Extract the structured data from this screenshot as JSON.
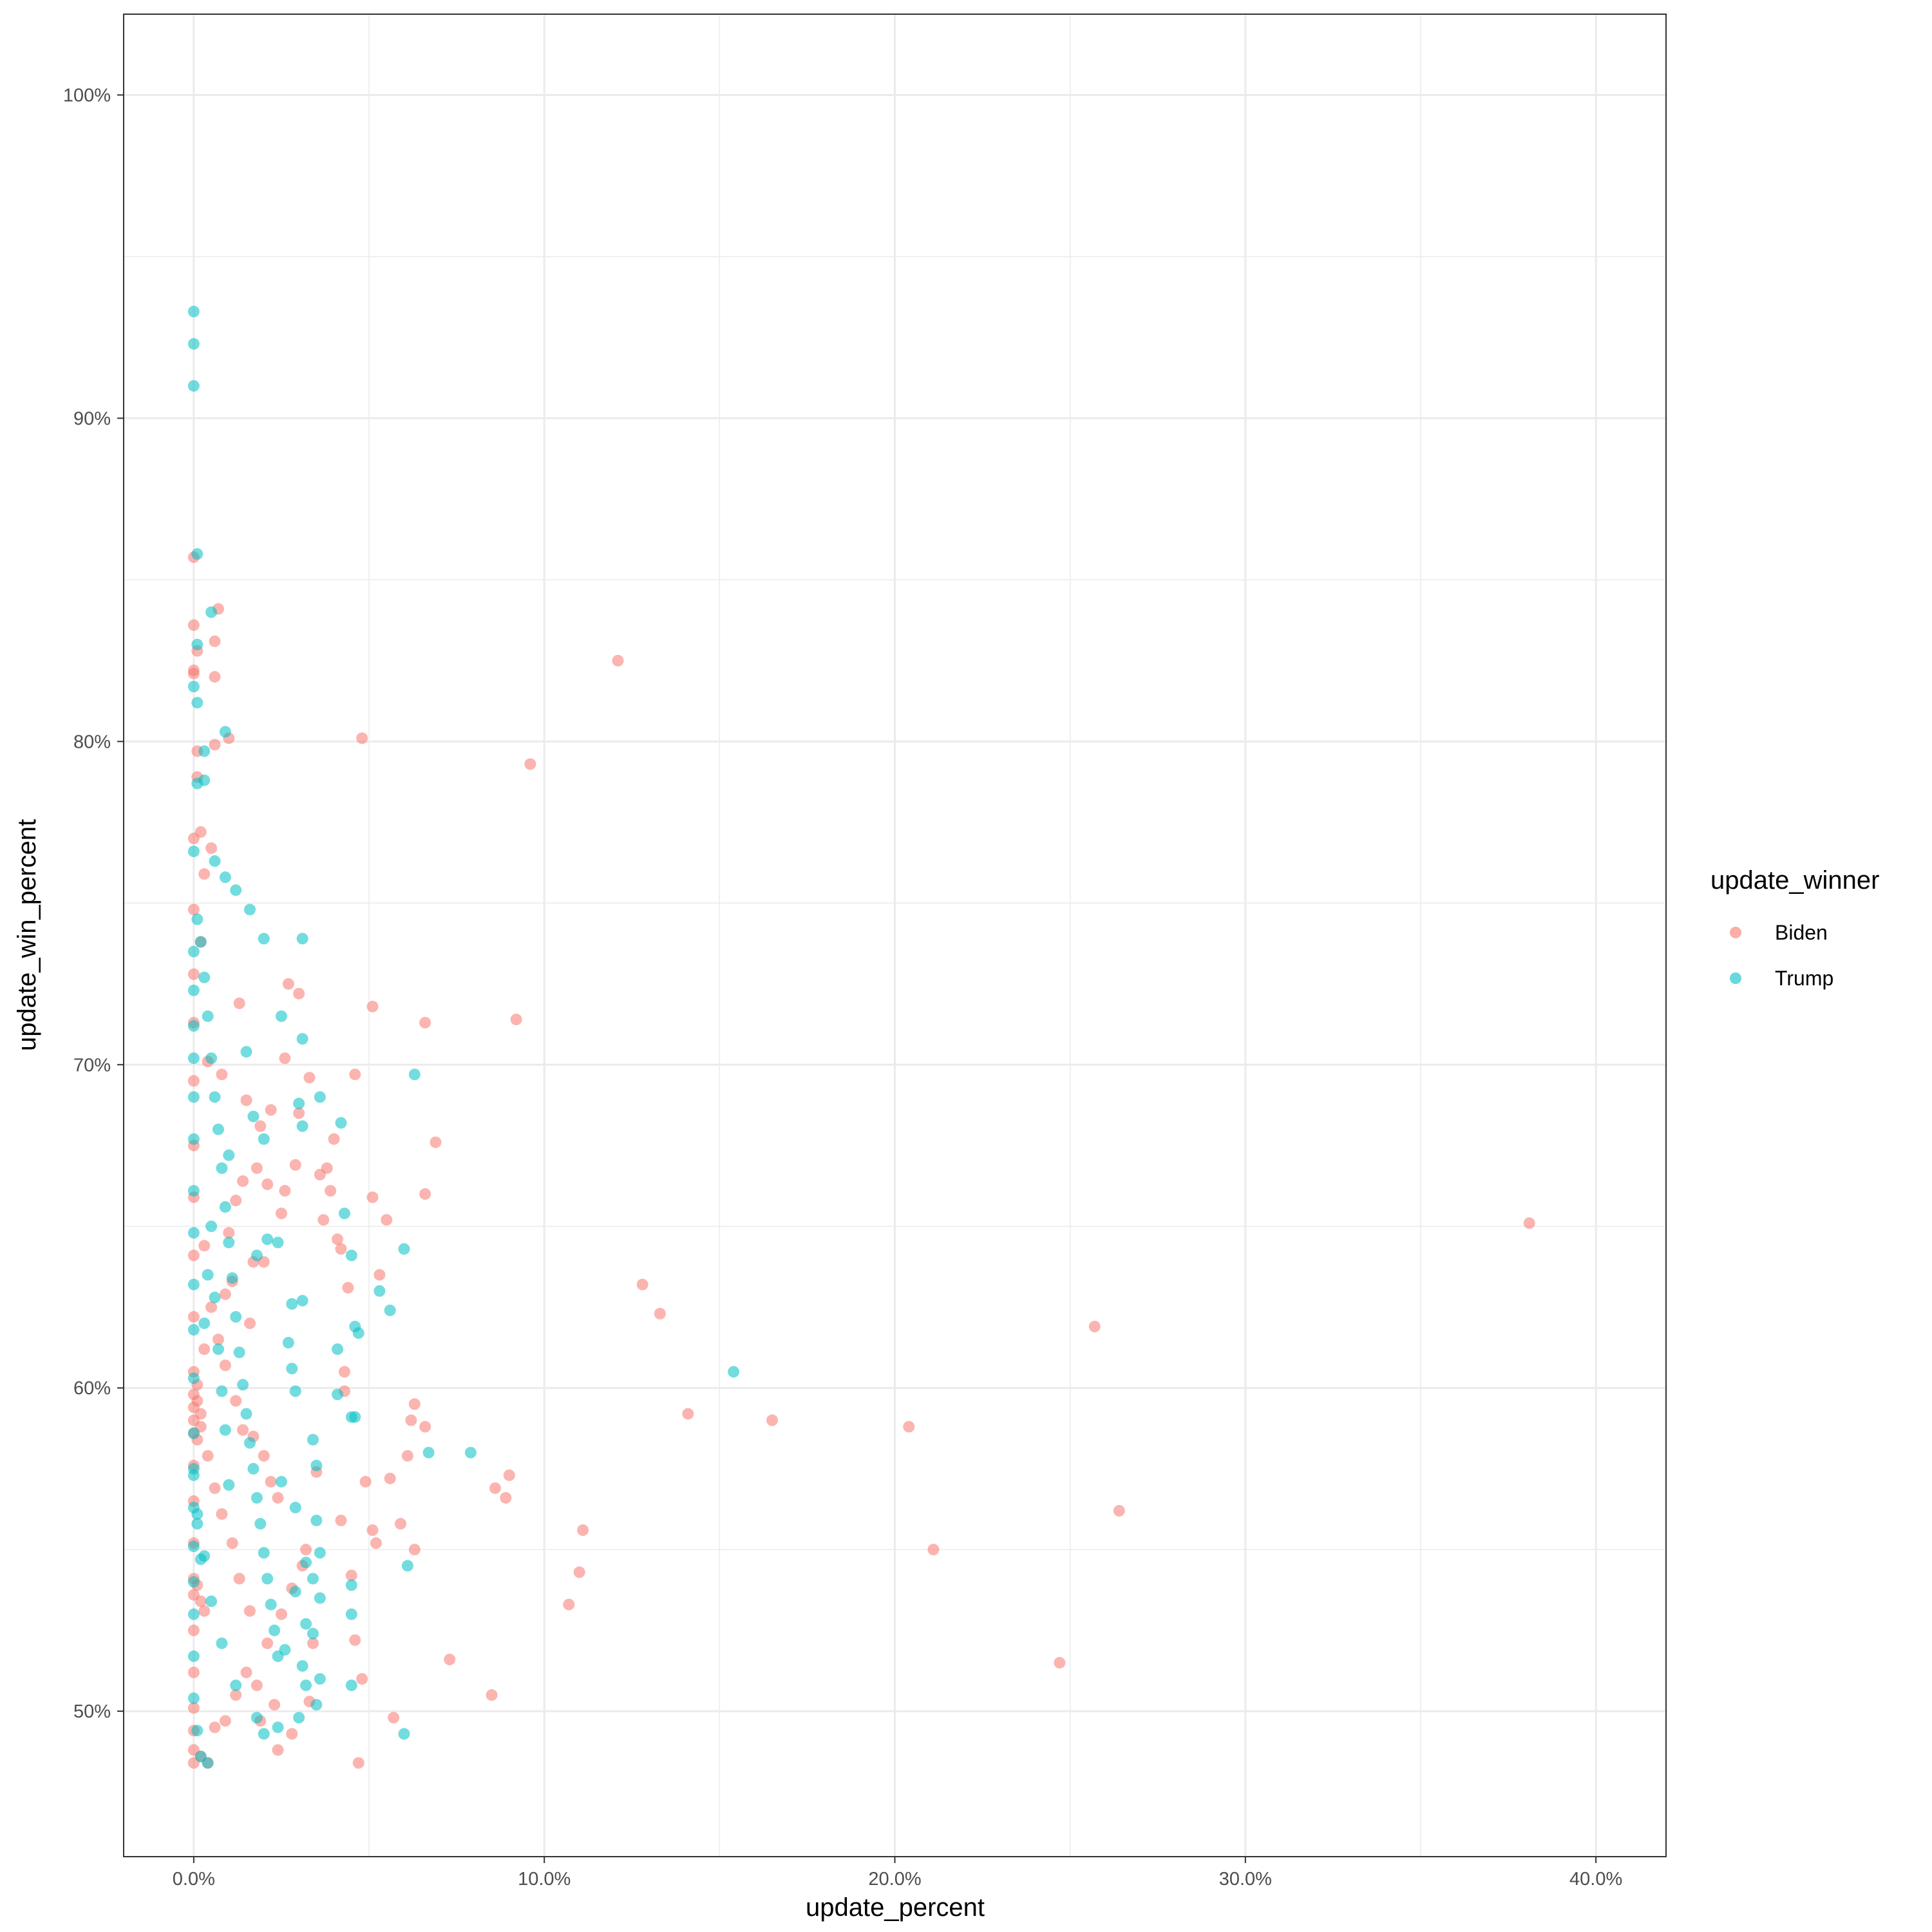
{
  "chart_data": {
    "type": "scatter",
    "title": "",
    "xlabel": "update_percent",
    "ylabel": "update_win_percent",
    "xlim": [
      -0.02,
      0.42
    ],
    "ylim": [
      0.455,
      1.025
    ],
    "x_ticks": [
      0,
      0.1,
      0.2,
      0.3,
      0.4
    ],
    "x_tick_labels": [
      "0.0%",
      "10.0%",
      "20.0%",
      "30.0%",
      "40.0%"
    ],
    "y_ticks": [
      0.5,
      0.6,
      0.7,
      0.8,
      0.9,
      1.0
    ],
    "y_tick_labels": [
      "50%",
      "60%",
      "70%",
      "80%",
      "90%",
      "100%"
    ],
    "grid": true,
    "legend": {
      "title": "update_winner",
      "placement": "right",
      "entries": [
        {
          "label": "Biden",
          "color": "#F8766D"
        },
        {
          "label": "Trump",
          "color": "#00BFC4"
        }
      ]
    },
    "series": [
      {
        "name": "Biden",
        "color": "#F8766D",
        "points": [
          [
            0.381,
            0.651
          ],
          [
            0.264,
            0.562
          ],
          [
            0.257,
            0.619
          ],
          [
            0.247,
            0.515
          ],
          [
            0.211,
            0.55
          ],
          [
            0.204,
            0.588
          ],
          [
            0.165,
            0.59
          ],
          [
            0.141,
            0.592
          ],
          [
            0.133,
            0.623
          ],
          [
            0.128,
            0.632
          ],
          [
            0.121,
            0.825
          ],
          [
            0.111,
            0.556
          ],
          [
            0.11,
            0.543
          ],
          [
            0.107,
            0.533
          ],
          [
            0.096,
            0.793
          ],
          [
            0.092,
            0.714
          ],
          [
            0.09,
            0.573
          ],
          [
            0.089,
            0.566
          ],
          [
            0.086,
            0.569
          ],
          [
            0.085,
            0.505
          ],
          [
            0.073,
            0.516
          ],
          [
            0.069,
            0.676
          ],
          [
            0.066,
            0.713
          ],
          [
            0.066,
            0.66
          ],
          [
            0.066,
            0.588
          ],
          [
            0.063,
            0.595
          ],
          [
            0.063,
            0.55
          ],
          [
            0.062,
            0.59
          ],
          [
            0.061,
            0.579
          ],
          [
            0.059,
            0.558
          ],
          [
            0.057,
            0.498
          ],
          [
            0.056,
            0.572
          ],
          [
            0.055,
            0.652
          ],
          [
            0.053,
            0.635
          ],
          [
            0.052,
            0.552
          ],
          [
            0.051,
            0.718
          ],
          [
            0.051,
            0.659
          ],
          [
            0.051,
            0.556
          ],
          [
            0.049,
            0.571
          ],
          [
            0.048,
            0.801
          ],
          [
            0.048,
            0.51
          ],
          [
            0.047,
            0.484
          ],
          [
            0.046,
            0.697
          ],
          [
            0.046,
            0.522
          ],
          [
            0.045,
            0.542
          ],
          [
            0.044,
            0.631
          ],
          [
            0.043,
            0.605
          ],
          [
            0.043,
            0.599
          ],
          [
            0.042,
            0.643
          ],
          [
            0.042,
            0.559
          ],
          [
            0.041,
            0.646
          ],
          [
            0.04,
            0.677
          ],
          [
            0.039,
            0.661
          ],
          [
            0.038,
            0.668
          ],
          [
            0.037,
            0.652
          ],
          [
            0.036,
            0.666
          ],
          [
            0.035,
            0.574
          ],
          [
            0.034,
            0.521
          ],
          [
            0.033,
            0.696
          ],
          [
            0.032,
            0.55
          ],
          [
            0.03,
            0.722
          ],
          [
            0.03,
            0.685
          ],
          [
            0.029,
            0.669
          ],
          [
            0.027,
            0.725
          ],
          [
            0.026,
            0.702
          ],
          [
            0.026,
            0.661
          ],
          [
            0.025,
            0.654
          ],
          [
            0.024,
            0.488
          ],
          [
            0.022,
            0.686
          ],
          [
            0.021,
            0.663
          ],
          [
            0.02,
            0.639
          ],
          [
            0.019,
            0.681
          ],
          [
            0.018,
            0.668
          ],
          [
            0.017,
            0.639
          ],
          [
            0.016,
            0.62
          ],
          [
            0.015,
            0.689
          ],
          [
            0.014,
            0.664
          ],
          [
            0.013,
            0.719
          ],
          [
            0.012,
            0.658
          ],
          [
            0.011,
            0.633
          ],
          [
            0.01,
            0.801
          ],
          [
            0.01,
            0.648
          ],
          [
            0.009,
            0.629
          ],
          [
            0.008,
            0.697
          ],
          [
            0.007,
            0.841
          ],
          [
            0.006,
            0.831
          ],
          [
            0.006,
            0.82
          ],
          [
            0.006,
            0.799
          ],
          [
            0.005,
            0.767
          ],
          [
            0.004,
            0.701
          ],
          [
            0.003,
            0.759
          ],
          [
            0.003,
            0.644
          ],
          [
            0.002,
            0.772
          ],
          [
            0.002,
            0.738
          ],
          [
            0.001,
            0.797
          ],
          [
            0.001,
            0.789
          ],
          [
            0.001,
            0.828
          ],
          [
            0.0,
            0.857
          ],
          [
            0.0,
            0.836
          ],
          [
            0.0,
            0.822
          ],
          [
            0.0,
            0.821
          ],
          [
            0.0,
            0.77
          ],
          [
            0.0,
            0.748
          ],
          [
            0.0,
            0.728
          ],
          [
            0.0,
            0.713
          ],
          [
            0.0,
            0.695
          ],
          [
            0.0,
            0.675
          ],
          [
            0.0,
            0.659
          ],
          [
            0.0,
            0.641
          ],
          [
            0.0,
            0.622
          ],
          [
            0.0,
            0.605
          ],
          [
            0.0,
            0.598
          ],
          [
            0.0,
            0.594
          ],
          [
            0.0,
            0.59
          ],
          [
            0.0,
            0.586
          ],
          [
            0.001,
            0.601
          ],
          [
            0.001,
            0.596
          ],
          [
            0.002,
            0.592
          ],
          [
            0.002,
            0.588
          ],
          [
            0.001,
            0.584
          ],
          [
            0.0,
            0.576
          ],
          [
            0.0,
            0.565
          ],
          [
            0.0,
            0.552
          ],
          [
            0.0,
            0.541
          ],
          [
            0.0,
            0.536
          ],
          [
            0.001,
            0.539
          ],
          [
            0.002,
            0.534
          ],
          [
            0.003,
            0.531
          ],
          [
            0.0,
            0.525
          ],
          [
            0.0,
            0.512
          ],
          [
            0.0,
            0.501
          ],
          [
            0.0,
            0.494
          ],
          [
            0.0,
            0.488
          ],
          [
            0.0,
            0.484
          ],
          [
            0.002,
            0.486
          ],
          [
            0.004,
            0.484
          ],
          [
            0.006,
            0.495
          ],
          [
            0.009,
            0.497
          ],
          [
            0.012,
            0.505
          ],
          [
            0.015,
            0.512
          ],
          [
            0.018,
            0.508
          ],
          [
            0.021,
            0.521
          ],
          [
            0.025,
            0.53
          ],
          [
            0.028,
            0.538
          ],
          [
            0.031,
            0.545
          ],
          [
            0.033,
            0.503
          ],
          [
            0.028,
            0.493
          ],
          [
            0.023,
            0.502
          ],
          [
            0.019,
            0.497
          ],
          [
            0.016,
            0.531
          ],
          [
            0.013,
            0.541
          ],
          [
            0.011,
            0.552
          ],
          [
            0.008,
            0.561
          ],
          [
            0.006,
            0.569
          ],
          [
            0.004,
            0.579
          ],
          [
            0.003,
            0.612
          ],
          [
            0.005,
            0.625
          ],
          [
            0.007,
            0.615
          ],
          [
            0.009,
            0.607
          ],
          [
            0.012,
            0.596
          ],
          [
            0.014,
            0.587
          ],
          [
            0.017,
            0.585
          ],
          [
            0.02,
            0.579
          ],
          [
            0.022,
            0.571
          ],
          [
            0.024,
            0.566
          ]
        ]
      },
      {
        "name": "Trump",
        "color": "#00BFC4",
        "points": [
          [
            0.0,
            0.933
          ],
          [
            0.0,
            0.923
          ],
          [
            0.0,
            0.91
          ],
          [
            0.001,
            0.858
          ],
          [
            0.005,
            0.84
          ],
          [
            0.001,
            0.83
          ],
          [
            0.0,
            0.817
          ],
          [
            0.001,
            0.812
          ],
          [
            0.009,
            0.803
          ],
          [
            0.003,
            0.797
          ],
          [
            0.003,
            0.788
          ],
          [
            0.001,
            0.787
          ],
          [
            0.0,
            0.766
          ],
          [
            0.006,
            0.763
          ],
          [
            0.009,
            0.758
          ],
          [
            0.012,
            0.754
          ],
          [
            0.016,
            0.748
          ],
          [
            0.02,
            0.739
          ],
          [
            0.031,
            0.739
          ],
          [
            0.025,
            0.715
          ],
          [
            0.031,
            0.708
          ],
          [
            0.015,
            0.704
          ],
          [
            0.063,
            0.697
          ],
          [
            0.036,
            0.69
          ],
          [
            0.03,
            0.688
          ],
          [
            0.017,
            0.684
          ],
          [
            0.042,
            0.682
          ],
          [
            0.031,
            0.681
          ],
          [
            0.02,
            0.677
          ],
          [
            0.01,
            0.672
          ],
          [
            0.043,
            0.654
          ],
          [
            0.06,
            0.643
          ],
          [
            0.045,
            0.641
          ],
          [
            0.021,
            0.646
          ],
          [
            0.024,
            0.645
          ],
          [
            0.018,
            0.641
          ],
          [
            0.031,
            0.627
          ],
          [
            0.028,
            0.626
          ],
          [
            0.053,
            0.63
          ],
          [
            0.056,
            0.624
          ],
          [
            0.046,
            0.619
          ],
          [
            0.047,
            0.617
          ],
          [
            0.027,
            0.614
          ],
          [
            0.041,
            0.612
          ],
          [
            0.028,
            0.606
          ],
          [
            0.029,
            0.599
          ],
          [
            0.041,
            0.598
          ],
          [
            0.045,
            0.591
          ],
          [
            0.046,
            0.591
          ],
          [
            0.034,
            0.584
          ],
          [
            0.154,
            0.605
          ],
          [
            0.067,
            0.58
          ],
          [
            0.079,
            0.58
          ],
          [
            0.035,
            0.576
          ],
          [
            0.025,
            0.571
          ],
          [
            0.035,
            0.559
          ],
          [
            0.029,
            0.563
          ],
          [
            0.061,
            0.545
          ],
          [
            0.036,
            0.549
          ],
          [
            0.032,
            0.546
          ],
          [
            0.034,
            0.541
          ],
          [
            0.045,
            0.539
          ],
          [
            0.029,
            0.537
          ],
          [
            0.036,
            0.535
          ],
          [
            0.045,
            0.53
          ],
          [
            0.032,
            0.527
          ],
          [
            0.034,
            0.524
          ],
          [
            0.026,
            0.519
          ],
          [
            0.031,
            0.514
          ],
          [
            0.036,
            0.51
          ],
          [
            0.045,
            0.508
          ],
          [
            0.032,
            0.508
          ],
          [
            0.035,
            0.502
          ],
          [
            0.03,
            0.498
          ],
          [
            0.024,
            0.495
          ],
          [
            0.02,
            0.493
          ],
          [
            0.06,
            0.493
          ],
          [
            0.018,
            0.498
          ],
          [
            0.012,
            0.508
          ],
          [
            0.008,
            0.521
          ],
          [
            0.005,
            0.534
          ],
          [
            0.003,
            0.548
          ],
          [
            0.001,
            0.561
          ],
          [
            0.0,
            0.573
          ],
          [
            0.001,
            0.558
          ],
          [
            0.002,
            0.547
          ],
          [
            0.0,
            0.53
          ],
          [
            0.0,
            0.517
          ],
          [
            0.0,
            0.504
          ],
          [
            0.001,
            0.494
          ],
          [
            0.002,
            0.486
          ],
          [
            0.004,
            0.484
          ],
          [
            0.0,
            0.54
          ],
          [
            0.0,
            0.551
          ],
          [
            0.0,
            0.563
          ],
          [
            0.0,
            0.575
          ],
          [
            0.0,
            0.586
          ],
          [
            0.0,
            0.603
          ],
          [
            0.0,
            0.618
          ],
          [
            0.0,
            0.632
          ],
          [
            0.0,
            0.648
          ],
          [
            0.0,
            0.661
          ],
          [
            0.0,
            0.677
          ],
          [
            0.0,
            0.69
          ],
          [
            0.0,
            0.702
          ],
          [
            0.0,
            0.712
          ],
          [
            0.0,
            0.723
          ],
          [
            0.0,
            0.735
          ],
          [
            0.001,
            0.745
          ],
          [
            0.002,
            0.738
          ],
          [
            0.003,
            0.727
          ],
          [
            0.004,
            0.715
          ],
          [
            0.005,
            0.702
          ],
          [
            0.006,
            0.69
          ],
          [
            0.007,
            0.68
          ],
          [
            0.008,
            0.668
          ],
          [
            0.009,
            0.656
          ],
          [
            0.01,
            0.645
          ],
          [
            0.011,
            0.634
          ],
          [
            0.012,
            0.622
          ],
          [
            0.013,
            0.611
          ],
          [
            0.014,
            0.601
          ],
          [
            0.015,
            0.592
          ],
          [
            0.016,
            0.583
          ],
          [
            0.017,
            0.575
          ],
          [
            0.018,
            0.566
          ],
          [
            0.019,
            0.558
          ],
          [
            0.02,
            0.549
          ],
          [
            0.021,
            0.541
          ],
          [
            0.022,
            0.533
          ],
          [
            0.023,
            0.525
          ],
          [
            0.024,
            0.517
          ],
          [
            0.003,
            0.62
          ],
          [
            0.004,
            0.635
          ],
          [
            0.005,
            0.65
          ],
          [
            0.006,
            0.628
          ],
          [
            0.007,
            0.612
          ],
          [
            0.008,
            0.599
          ],
          [
            0.009,
            0.587
          ],
          [
            0.01,
            0.57
          ]
        ]
      }
    ]
  }
}
